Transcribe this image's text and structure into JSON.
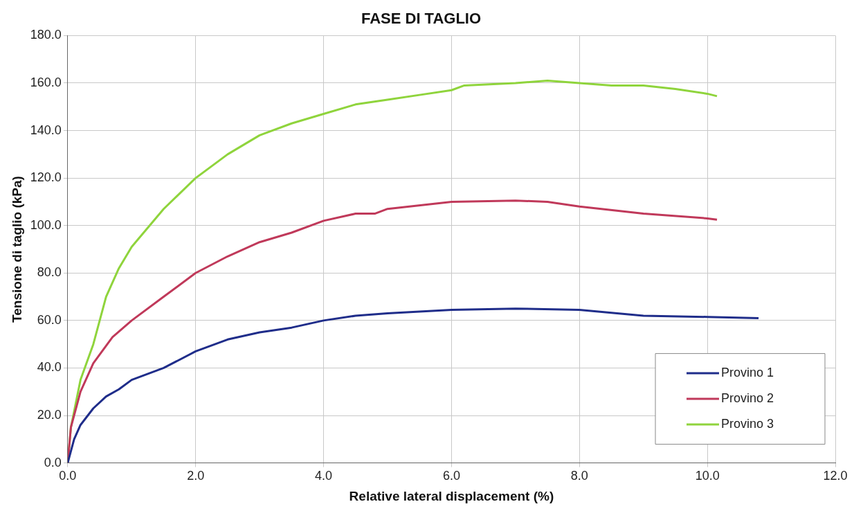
{
  "chart_data": {
    "type": "line",
    "title": "FASE DI TAGLIO",
    "xlabel": "Relative lateral displacement (%)",
    "ylabel": "Tensione di taglio (kPa)",
    "xlim": [
      0,
      12
    ],
    "ylim": [
      0,
      180
    ],
    "xticks": [
      {
        "value": 0,
        "label": "0.0"
      },
      {
        "value": 2,
        "label": "2.0"
      },
      {
        "value": 4,
        "label": "4.0"
      },
      {
        "value": 6,
        "label": "6.0"
      },
      {
        "value": 8,
        "label": "8.0"
      },
      {
        "value": 10,
        "label": "10.0"
      },
      {
        "value": 12,
        "label": "12.0"
      }
    ],
    "yticks": [
      {
        "value": 0,
        "label": "0.0"
      },
      {
        "value": 20,
        "label": "20.0"
      },
      {
        "value": 40,
        "label": "40.0"
      },
      {
        "value": 60,
        "label": "60.0"
      },
      {
        "value": 80,
        "label": "80.0"
      },
      {
        "value": 100,
        "label": "100.0"
      },
      {
        "value": 120,
        "label": "120.0"
      },
      {
        "value": 140,
        "label": "140.0"
      },
      {
        "value": 160,
        "label": "160.0"
      },
      {
        "value": 180,
        "label": "180.0"
      }
    ],
    "grid": true,
    "legend": "bottom right",
    "marker": "none",
    "line_style": "solid",
    "series": [
      {
        "name": "Provino 1",
        "color": "#1f2d8a",
        "x": [
          0,
          0.1,
          0.2,
          0.4,
          0.6,
          0.8,
          1.0,
          1.5,
          2.0,
          2.5,
          3.0,
          3.5,
          4.0,
          4.5,
          5.0,
          6.0,
          7.0,
          8.0,
          9.0,
          10.0,
          10.8
        ],
        "values": [
          0,
          10,
          16,
          23,
          28,
          31,
          35,
          40,
          47,
          52,
          55,
          57,
          60,
          62,
          63,
          64.5,
          65,
          64.5,
          62,
          61.5,
          61
        ]
      },
      {
        "name": "Provino 2",
        "color": "#c0395a",
        "x": [
          0,
          0.05,
          0.2,
          0.4,
          0.7,
          1.0,
          1.5,
          2.0,
          2.5,
          3.0,
          3.5,
          4.0,
          4.5,
          4.8,
          5.0,
          6.0,
          7.0,
          7.5,
          8.0,
          9.0,
          10.0,
          10.15
        ],
        "values": [
          0,
          15,
          30,
          42,
          53,
          60,
          70,
          80,
          87,
          93,
          97,
          102,
          105,
          105,
          107,
          110,
          110.5,
          110,
          108,
          105,
          103,
          102.5
        ]
      },
      {
        "name": "Provino 3",
        "color": "#8fd43c",
        "x": [
          0,
          0.05,
          0.2,
          0.4,
          0.6,
          0.8,
          1.0,
          1.5,
          2.0,
          2.5,
          3.0,
          3.5,
          4.0,
          4.5,
          5.0,
          5.5,
          6.0,
          6.2,
          7.0,
          7.5,
          8.0,
          8.5,
          9.0,
          9.5,
          10.0,
          10.15
        ],
        "values": [
          0,
          15,
          35,
          50,
          70,
          82,
          91,
          107,
          120,
          130,
          138,
          143,
          147,
          151,
          153,
          155,
          157,
          159,
          160,
          161,
          160,
          159,
          159,
          157.5,
          155.5,
          154.5
        ]
      }
    ]
  }
}
